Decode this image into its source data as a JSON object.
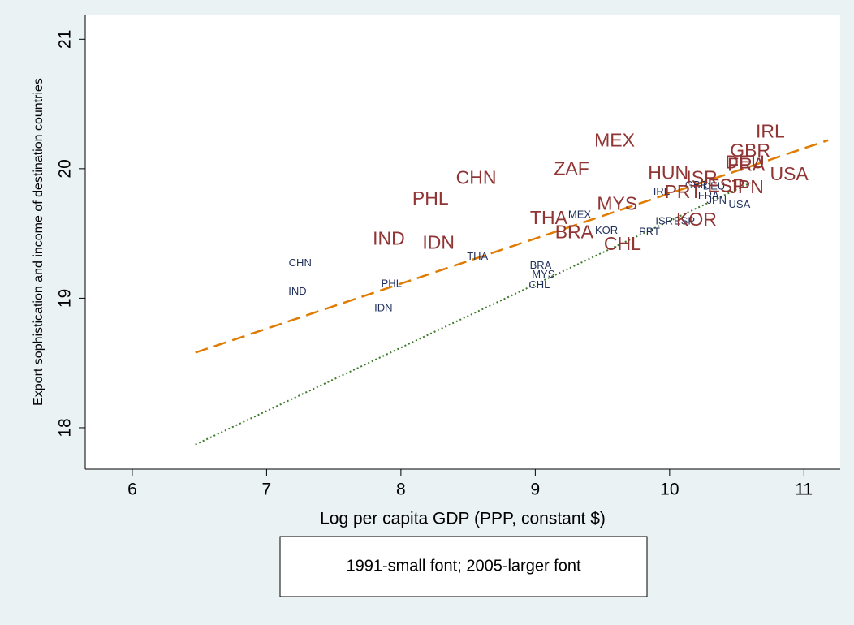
{
  "chart_data": {
    "type": "scatter",
    "x_label": "Log per capita GDP (PPP, constant $)",
    "y_label": "Export sophistication and income of destination countries",
    "note": "1991-small font; 2005-larger font",
    "xlim": [
      5.65,
      11.27
    ],
    "ylim": [
      17.68,
      21.19
    ],
    "xticks": [
      6,
      7,
      8,
      9,
      10,
      11
    ],
    "yticks": [
      18,
      19,
      20,
      21
    ],
    "series": [
      {
        "color": "#1f2f5c",
        "font_size": 13,
        "labels": [
          "CHN",
          "IND",
          "PHL",
          "IDN",
          "THA",
          "MYS",
          "BRA",
          "CHL",
          "MEX",
          "KOR",
          "PRT",
          "ISR",
          "ESP",
          "IRL",
          "GBR",
          "DEU",
          "FRA",
          "JPN",
          "USA"
        ],
        "x": [
          7.25,
          7.23,
          7.93,
          7.87,
          8.57,
          9.06,
          9.04,
          9.03,
          9.33,
          9.53,
          9.85,
          9.96,
          10.11,
          9.94,
          10.2,
          10.33,
          10.29,
          10.35,
          10.52
        ],
        "y": [
          19.27,
          19.05,
          19.11,
          18.92,
          19.32,
          19.18,
          19.25,
          19.1,
          19.64,
          19.52,
          19.51,
          19.59,
          19.59,
          19.82,
          19.87,
          19.86,
          19.79,
          19.75,
          19.72
        ]
      },
      {
        "color": "#903434",
        "font_size": 23,
        "labels": [
          "IRL",
          "GBR",
          "DEU",
          "FRA",
          "USA",
          "JPN",
          "ESP",
          "ISR",
          "HUN",
          "PRT",
          "KOR",
          "MEX",
          "ZAF",
          "CHN",
          "PHL",
          "MYS",
          "THA",
          "BRA",
          "CHL",
          "IND",
          "IDN"
        ],
        "x": [
          10.75,
          10.6,
          10.56,
          10.57,
          10.89,
          10.57,
          10.42,
          10.24,
          9.99,
          10.1,
          10.2,
          9.59,
          9.27,
          8.56,
          8.22,
          9.61,
          9.1,
          9.29,
          9.65,
          7.91,
          8.28
        ],
        "y": [
          20.28,
          20.13,
          20.04,
          20.02,
          19.95,
          19.85,
          19.86,
          19.92,
          19.96,
          19.81,
          19.6,
          20.21,
          19.99,
          19.92,
          19.76,
          19.72,
          19.61,
          19.5,
          19.41,
          19.45,
          19.42
        ]
      }
    ],
    "fit_lines": [
      {
        "color": "#e07b00",
        "dash": "dashed",
        "x": [
          6.47,
          11.18
        ],
        "y": [
          18.58,
          20.22
        ]
      },
      {
        "color": "#3d7a2a",
        "dash": "dotted",
        "x": [
          6.47,
          10.6
        ],
        "y": [
          17.87,
          19.89
        ]
      }
    ]
  }
}
